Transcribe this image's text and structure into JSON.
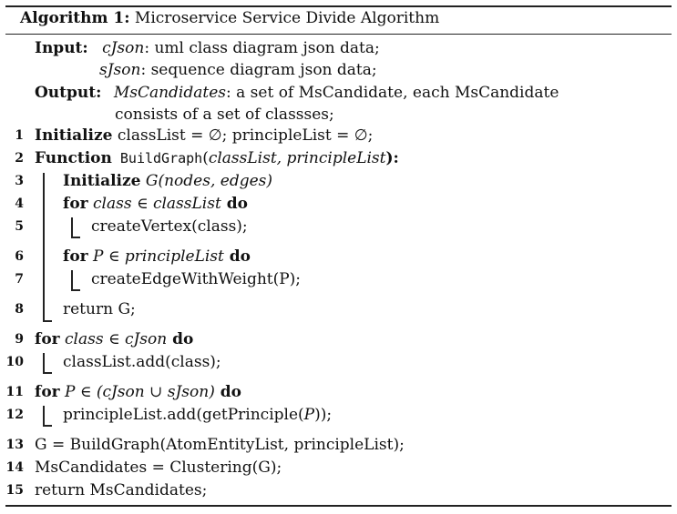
{
  "caption": {
    "label": "Algorithm 1:",
    "title": "Microservice Service Divide Algorithm"
  },
  "input": {
    "label": "Input:",
    "lines": [
      {
        "var": "cJson",
        "text": ": uml class diagram json data;"
      },
      {
        "var": "sJson",
        "text": ": sequence diagram json data;"
      }
    ]
  },
  "output": {
    "label": "Output:",
    "var": "MsCandidates",
    "text1": ": a set of MsCandidate, each MsCandidate",
    "text2": "consists of a set of classses;"
  },
  "lines": [
    {
      "num": "1",
      "kw": "Initialize",
      "text": " classList = ∅; principleList = ∅;"
    },
    {
      "num": "2",
      "kw": "Function",
      "func": " BuildGraph",
      "open": "(",
      "args": "classList, principleList",
      "close": "):"
    },
    {
      "num": "3",
      "kw": "Initialize",
      "it": " G",
      "rest": "(nodes, edges)"
    },
    {
      "num": "4",
      "kw": "for",
      "it": " class ∈ classList",
      "kw2": " do"
    },
    {
      "num": "5",
      "text": "createVertex(class);"
    },
    {
      "num": "6",
      "kw": "for",
      "it": " P ∈ principleList",
      "kw2": " do"
    },
    {
      "num": "7",
      "text": "createEdgeWithWeight(P);"
    },
    {
      "num": "8",
      "text": "return G;"
    },
    {
      "num": "9",
      "kw": "for",
      "it": " class ∈ cJson",
      "kw2": " do"
    },
    {
      "num": "10",
      "text": "classList.add(class);"
    },
    {
      "num": "11",
      "kw": "for",
      "it": " P ∈ (cJson ∪ sJson)",
      "kw2": " do"
    },
    {
      "num": "12",
      "pre": "principleList.add(getPrinciple(",
      "it": "P",
      "post": "));"
    },
    {
      "num": "13",
      "text": "G = BuildGraph(AtomEntityList, principleList);"
    },
    {
      "num": "14",
      "text": "MsCandidates = Clustering(G);"
    },
    {
      "num": "15",
      "text": "return MsCandidates;"
    }
  ]
}
